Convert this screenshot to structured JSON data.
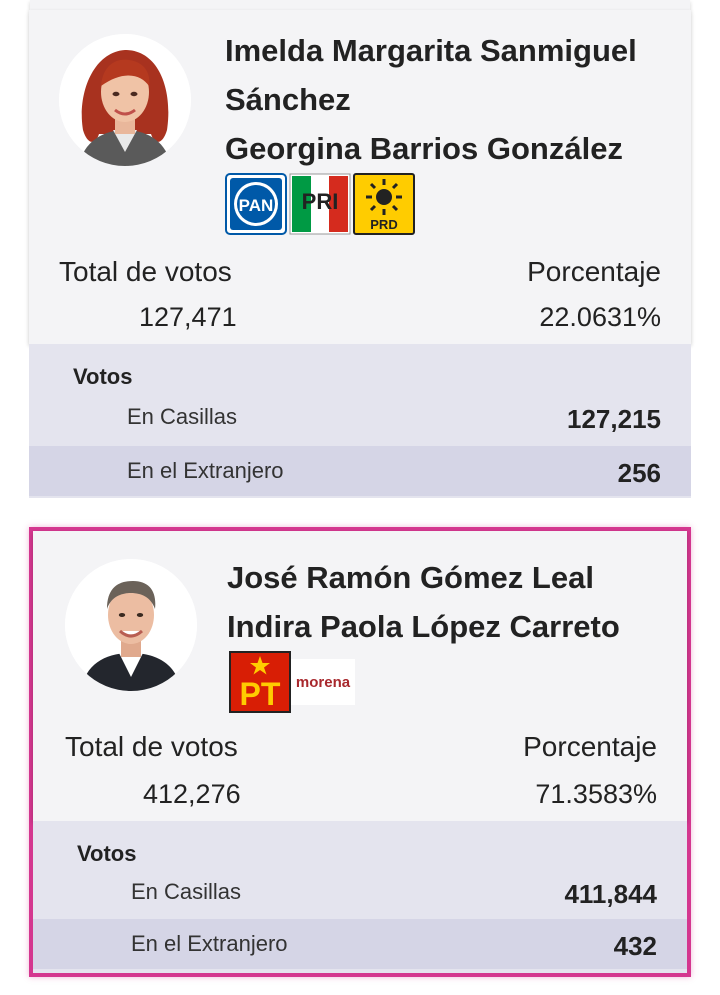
{
  "results": [
    {
      "candidates": [
        "Imelda Margarita Sanmiguel",
        "Sánchez",
        "Georgina Barrios González"
      ],
      "parties": [
        "PAN",
        "PRI",
        "PRD"
      ],
      "total_label": "Total de votos",
      "total_value": "127,471",
      "percent_label": "Porcentaje",
      "percent_value": "22.0631%",
      "votos_title": "Votos",
      "casillas_label": "En Casillas",
      "casillas_value": "127,215",
      "extranjero_label": "En el Extranjero",
      "extranjero_value": "256",
      "highlighted": false
    },
    {
      "candidates": [
        "José Ramón Gómez Leal",
        "Indira Paola López Carreto"
      ],
      "parties": [
        "PT",
        "morena"
      ],
      "total_label": "Total de votos",
      "total_value": "412,276",
      "percent_label": "Porcentaje",
      "percent_value": "71.3583%",
      "votos_title": "Votos",
      "casillas_label": "En Casillas",
      "casillas_value": "411,844",
      "extranjero_label": "En el Extranjero",
      "extranjero_value": "432",
      "highlighted": true
    }
  ],
  "colors": {
    "highlight_border": "#d4378f",
    "card_header_bg": "#f4f4f6",
    "votos_bg": "#e4e4ee",
    "alt_row_bg": "#d5d5e6",
    "pan_blue": "#0059a8",
    "pri_green": "#009a44",
    "pri_red": "#d52b1e",
    "prd_yellow": "#ffcc00",
    "pt_red": "#d81e05",
    "morena_maroon": "#a8282d"
  }
}
